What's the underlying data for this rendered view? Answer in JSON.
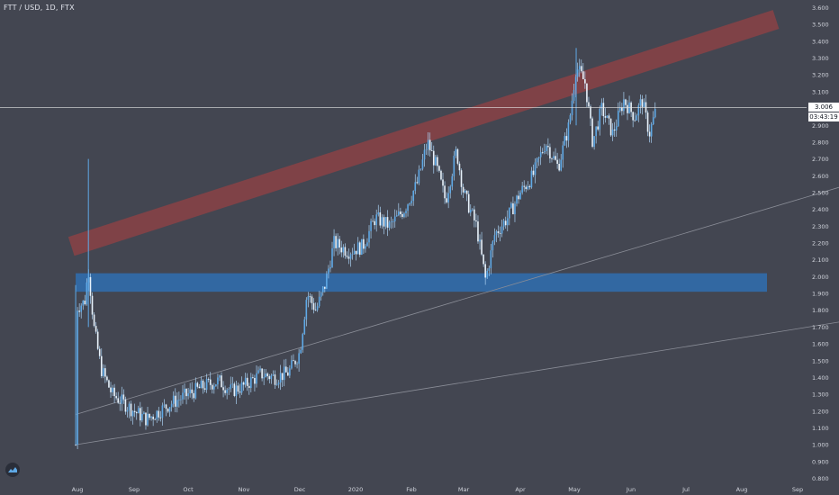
{
  "header": {
    "title": "FTT / USD, 1D, FTX"
  },
  "price_tags": {
    "last": "3.006",
    "countdown": "03:43:19"
  },
  "colors": {
    "background": "#434651",
    "axis_text": "#d1d4dc",
    "candle": "#5fa9e6",
    "wick": "#a9d0f2",
    "channel_band": "#b04040",
    "support_zone": "#2f6fb0",
    "trendline": "#8a8d97",
    "price_line": "#e6e6e6"
  },
  "chart_data": {
    "type": "candlestick",
    "title": "FTT / USD, 1D, FTX",
    "x_ticks": [
      "Aug",
      "Sep",
      "Oct",
      "Nov",
      "Dec",
      "2020",
      "Feb",
      "Mar",
      "Apr",
      "May",
      "Jun",
      "Jul",
      "Aug",
      "Sep"
    ],
    "y_ticks": [
      "3.600",
      "3.500",
      "3.400",
      "3.300",
      "3.200",
      "3.100",
      "3.006",
      "2.900",
      "2.800",
      "2.700",
      "2.600",
      "2.500",
      "2.400",
      "2.300",
      "2.200",
      "2.100",
      "2.000",
      "1.900",
      "1.800",
      "1.700",
      "1.600",
      "1.500",
      "1.400",
      "1.300",
      "1.200",
      "1.100",
      "1.000",
      "0.900",
      "0.800"
    ],
    "ylim": [
      0.78,
      3.62
    ],
    "last_price": 3.006,
    "price_path": [
      {
        "date": "Jul 30",
        "close": 1.0
      },
      {
        "date": "Aug 1",
        "close": 1.82
      },
      {
        "date": "Aug 5",
        "close": 1.85
      },
      {
        "date": "Aug 7",
        "close": 2.05
      },
      {
        "date": "Aug 10",
        "close": 1.7
      },
      {
        "date": "Aug 14",
        "close": 1.45
      },
      {
        "date": "Aug 20",
        "close": 1.3
      },
      {
        "date": "Aug 26",
        "close": 1.25
      },
      {
        "date": "Sep 1",
        "close": 1.2
      },
      {
        "date": "Sep 8",
        "close": 1.15
      },
      {
        "date": "Sep 15",
        "close": 1.2
      },
      {
        "date": "Sep 22",
        "close": 1.25
      },
      {
        "date": "Oct 1",
        "close": 1.3
      },
      {
        "date": "Oct 10",
        "close": 1.35
      },
      {
        "date": "Oct 18",
        "close": 1.38
      },
      {
        "date": "Oct 25",
        "close": 1.32
      },
      {
        "date": "Nov 1",
        "close": 1.35
      },
      {
        "date": "Nov 10",
        "close": 1.42
      },
      {
        "date": "Nov 18",
        "close": 1.4
      },
      {
        "date": "Nov 25",
        "close": 1.43
      },
      {
        "date": "Dec 1",
        "close": 1.55
      },
      {
        "date": "Dec 5",
        "close": 1.9
      },
      {
        "date": "Dec 10",
        "close": 1.8
      },
      {
        "date": "Dec 15",
        "close": 1.95
      },
      {
        "date": "Dec 20",
        "close": 2.2
      },
      {
        "date": "Dec 28",
        "close": 2.15
      },
      {
        "date": "Jan 5",
        "close": 2.18
      },
      {
        "date": "Jan 12",
        "close": 2.35
      },
      {
        "date": "Jan 20",
        "close": 2.3
      },
      {
        "date": "Jan 28",
        "close": 2.4
      },
      {
        "date": "Feb 4",
        "close": 2.55
      },
      {
        "date": "Feb 10",
        "close": 2.8
      },
      {
        "date": "Feb 15",
        "close": 2.65
      },
      {
        "date": "Feb 20",
        "close": 2.45
      },
      {
        "date": "Feb 26",
        "close": 2.75
      },
      {
        "date": "Mar 1",
        "close": 2.5
      },
      {
        "date": "Mar 8",
        "close": 2.3
      },
      {
        "date": "Mar 13",
        "close": 1.98
      },
      {
        "date": "Mar 18",
        "close": 2.25
      },
      {
        "date": "Mar 25",
        "close": 2.35
      },
      {
        "date": "Apr 1",
        "close": 2.5
      },
      {
        "date": "Apr 8",
        "close": 2.6
      },
      {
        "date": "Apr 15",
        "close": 2.8
      },
      {
        "date": "Apr 22",
        "close": 2.65
      },
      {
        "date": "Apr 28",
        "close": 2.9
      },
      {
        "date": "May 2",
        "close": 3.25
      },
      {
        "date": "May 7",
        "close": 3.15
      },
      {
        "date": "May 11",
        "close": 2.8
      },
      {
        "date": "May 16",
        "close": 3.0
      },
      {
        "date": "May 22",
        "close": 2.85
      },
      {
        "date": "May 28",
        "close": 3.05
      },
      {
        "date": "Jun 3",
        "close": 2.95
      },
      {
        "date": "Jun 7",
        "close": 3.05
      },
      {
        "date": "Jun 11",
        "close": 2.85
      },
      {
        "date": "Jun 15",
        "close": 3.006
      }
    ],
    "drawings": {
      "channel_band": {
        "start": {
          "date": "Jul 25",
          "price": 2.18
        },
        "end": {
          "date": "Aug 20 2020",
          "price": 3.53
        }
      },
      "support_zone": {
        "from_date": "Jul 30",
        "to_date": "Aug 15 2020",
        "price_low": 1.91,
        "price_high": 2.02
      },
      "trendlines": [
        {
          "start": {
            "date": "Jul 30",
            "price": 1.18
          },
          "end": {
            "date": "Sep 30 2020",
            "price": 2.55
          }
        },
        {
          "start": {
            "date": "Jul 30",
            "price": 1.0
          },
          "end": {
            "date": "Sep 30 2020",
            "price": 1.74
          }
        }
      ]
    }
  }
}
